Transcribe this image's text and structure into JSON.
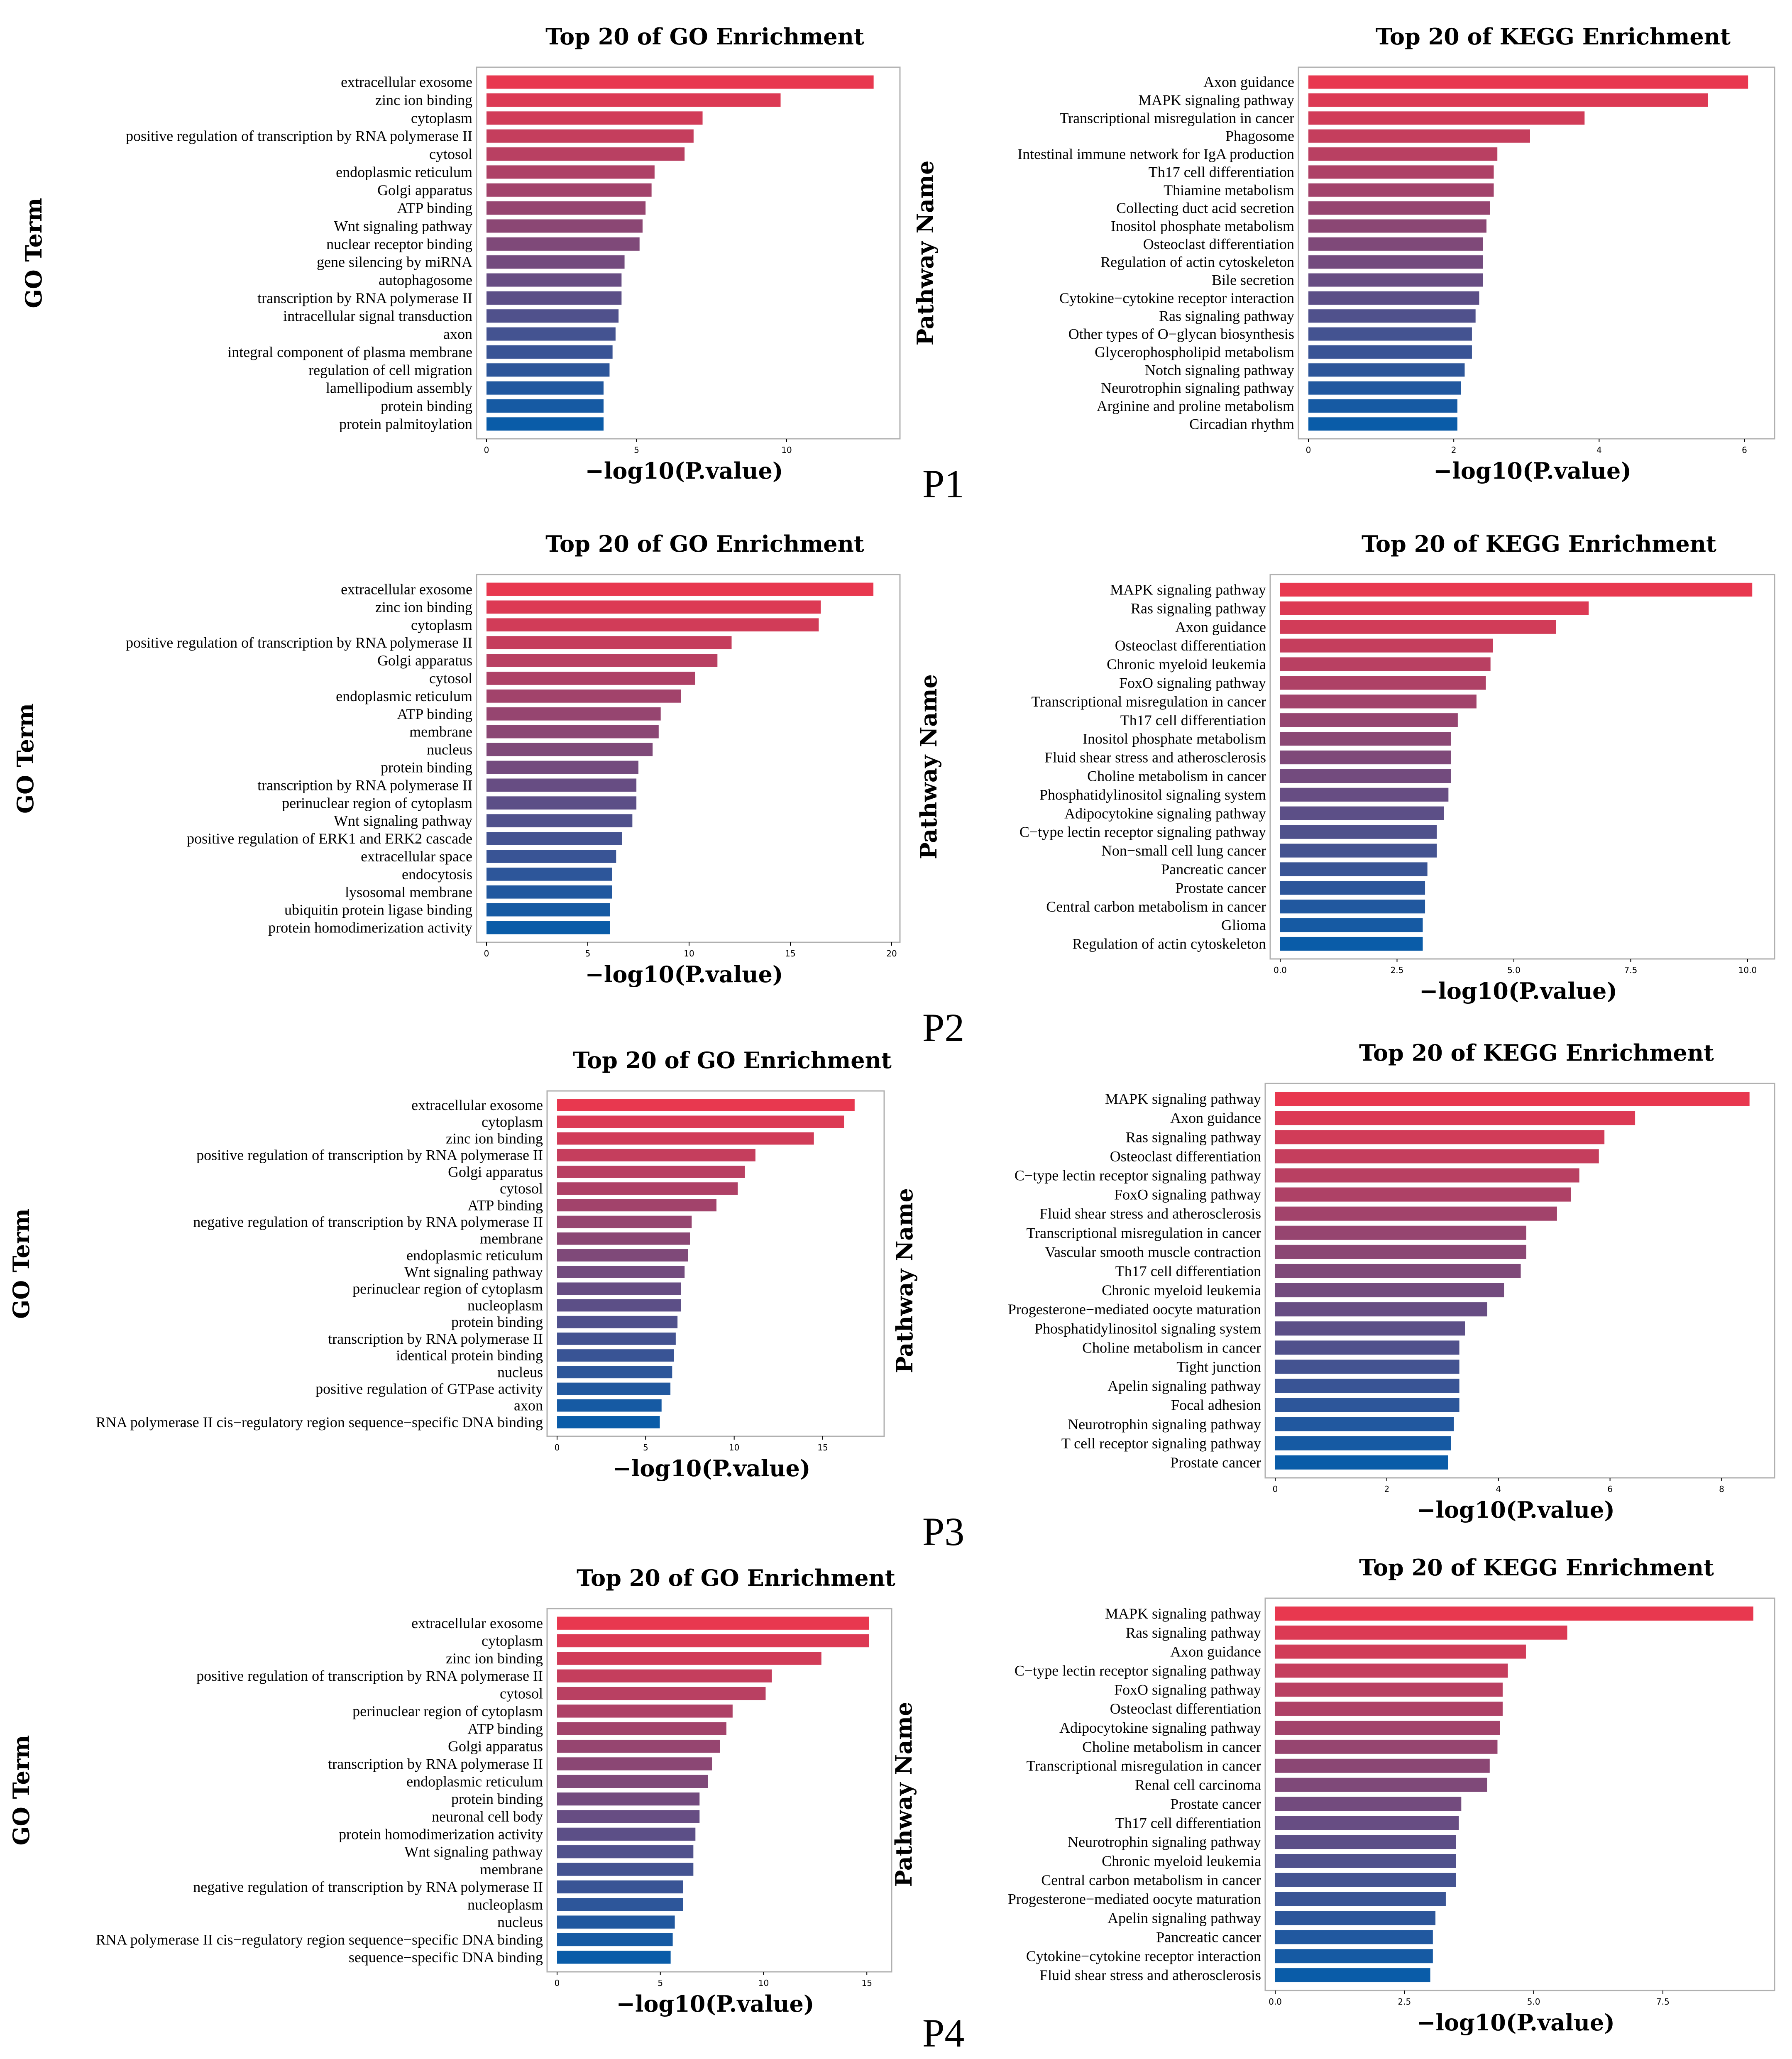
{
  "colors": {
    "top": "#e8384f",
    "bottom": "#0a5ca8"
  },
  "panel_labels": [
    "P1",
    "P2",
    "P3",
    "P4"
  ],
  "chart_data": [
    {
      "type": "bar",
      "orientation": "horizontal",
      "title": "Top 20 of GO Enrichment",
      "xlabel": "−log10(P.value)",
      "ylabel": "GO Term",
      "xlim": [
        0,
        13.5
      ],
      "xticks": [
        0,
        5,
        10
      ],
      "xtick_labels": [
        "0",
        "5",
        "10"
      ],
      "categories": [
        "extracellular exosome",
        "zinc ion binding",
        "cytoplasm",
        "positive regulation of transcription by RNA polymerase II",
        "cytosol",
        "endoplasmic reticulum",
        "Golgi apparatus",
        "ATP binding",
        "Wnt signaling pathway",
        "nuclear receptor binding",
        "gene silencing by miRNA",
        "autophagosome",
        "transcription by RNA polymerase II",
        "intracellular signal transduction",
        "axon",
        "integral component of plasma membrane",
        "regulation of cell migration",
        "lamellipodium assembly",
        "protein binding",
        "protein palmitoylation"
      ],
      "values": [
        12.9,
        9.8,
        7.2,
        6.9,
        6.6,
        5.6,
        5.5,
        5.3,
        5.2,
        5.1,
        4.6,
        4.5,
        4.5,
        4.4,
        4.3,
        4.2,
        4.1,
        3.9,
        3.9,
        3.9
      ]
    },
    {
      "type": "bar",
      "orientation": "horizontal",
      "title": "Top 20 of KEGG Enrichment",
      "xlabel": "−log10(P.value)",
      "ylabel": "Pathway Name",
      "xlim": [
        0,
        6.3
      ],
      "xticks": [
        0,
        2,
        4,
        6
      ],
      "xtick_labels": [
        "0",
        "2",
        "4",
        "6"
      ],
      "categories": [
        "Axon guidance",
        "MAPK signaling pathway",
        "Transcriptional misregulation in cancer",
        "Phagosome",
        "Intestinal immune network for IgA production",
        "Th17 cell differentiation",
        "Thiamine metabolism",
        "Collecting duct acid secretion",
        "Inositol phosphate metabolism",
        "Osteoclast differentiation",
        "Regulation of actin cytoskeleton",
        "Bile secretion",
        "Cytokine−cytokine receptor interaction",
        "Ras signaling pathway",
        "Other types of O−glycan biosynthesis",
        "Glycerophospholipid metabolism",
        "Notch signaling pathway",
        "Neurotrophin signaling pathway",
        "Arginine and proline metabolism",
        "Circadian rhythm"
      ],
      "values": [
        6.05,
        5.5,
        3.8,
        3.05,
        2.6,
        2.55,
        2.55,
        2.5,
        2.45,
        2.4,
        2.4,
        2.4,
        2.35,
        2.3,
        2.25,
        2.25,
        2.15,
        2.1,
        2.05,
        2.05
      ]
    },
    {
      "type": "bar",
      "orientation": "horizontal",
      "title": "Top 20 of GO Enrichment",
      "xlabel": "−log10(P.value)",
      "ylabel": "GO Term",
      "xlim": [
        0,
        20
      ],
      "xticks": [
        0,
        5,
        10,
        15,
        20
      ],
      "xtick_labels": [
        "0",
        "5",
        "10",
        "15",
        "20"
      ],
      "categories": [
        "extracellular exosome",
        "zinc ion binding",
        "cytoplasm",
        "positive regulation of transcription by RNA polymerase II",
        "Golgi apparatus",
        "cytosol",
        "endoplasmic reticulum",
        "ATP binding",
        "membrane",
        "nucleus",
        "protein binding",
        "transcription by RNA polymerase II",
        "perinuclear region of cytoplasm",
        "Wnt signaling pathway",
        "positive regulation of ERK1 and ERK2 cascade",
        "extracellular space",
        "endocytosis",
        "lysosomal membrane",
        "ubiquitin protein ligase binding",
        "protein homodimerization activity"
      ],
      "values": [
        19.1,
        16.5,
        16.4,
        12.1,
        11.4,
        10.3,
        9.6,
        8.6,
        8.5,
        8.2,
        7.5,
        7.4,
        7.4,
        7.2,
        6.7,
        6.4,
        6.2,
        6.2,
        6.1,
        6.1
      ]
    },
    {
      "type": "bar",
      "orientation": "horizontal",
      "title": "Top 20 of KEGG Enrichment",
      "xlabel": "−log10(P.value)",
      "ylabel": "Pathway Name",
      "xlim": [
        0,
        10.4
      ],
      "xticks": [
        0,
        2.5,
        5,
        7.5,
        10
      ],
      "xtick_labels": [
        "0.0",
        "2.5",
        "5.0",
        "7.5",
        "10.0"
      ],
      "categories": [
        "MAPK signaling pathway",
        "Ras signaling pathway",
        "Axon guidance",
        "Osteoclast differentiation",
        "Chronic myeloid leukemia",
        "FoxO signaling pathway",
        "Transcriptional misregulation in cancer",
        "Th17 cell differentiation",
        "Inositol phosphate metabolism",
        "Fluid shear stress and atherosclerosis",
        "Choline metabolism in cancer",
        "Phosphatidylinositol signaling system",
        "Adipocytokine signaling pathway",
        "C−type lectin receptor signaling pathway",
        "Non−small cell lung cancer",
        "Pancreatic cancer",
        "Prostate cancer",
        "Central carbon metabolism in cancer",
        "Glioma",
        "Regulation of actin cytoskeleton"
      ],
      "values": [
        10.1,
        6.6,
        5.9,
        4.55,
        4.5,
        4.4,
        4.2,
        3.8,
        3.65,
        3.65,
        3.65,
        3.6,
        3.5,
        3.35,
        3.35,
        3.15,
        3.1,
        3.1,
        3.05,
        3.05
      ]
    },
    {
      "type": "bar",
      "orientation": "horizontal",
      "title": "Top 20 of GO Enrichment",
      "xlabel": "−log10(P.value)",
      "ylabel": "GO Term",
      "xlim": [
        0,
        18
      ],
      "xticks": [
        0,
        5,
        10,
        15
      ],
      "xtick_labels": [
        "0",
        "5",
        "10",
        "15"
      ],
      "categories": [
        "extracellular exosome",
        "cytoplasm",
        "zinc ion binding",
        "positive regulation of transcription by RNA polymerase II",
        "Golgi apparatus",
        "cytosol",
        "ATP binding",
        "negative regulation of transcription by RNA polymerase II",
        "membrane",
        "endoplasmic reticulum",
        "Wnt signaling pathway",
        "perinuclear region of cytoplasm",
        "nucleoplasm",
        "protein binding",
        "transcription by RNA polymerase II",
        "identical protein binding",
        "nucleus",
        "positive regulation of GTPase activity",
        "axon",
        "RNA polymerase II cis−regulatory region sequence−specific DNA binding"
      ],
      "values": [
        16.8,
        16.2,
        14.5,
        11.2,
        10.6,
        10.2,
        9.0,
        7.6,
        7.5,
        7.4,
        7.2,
        7.0,
        7.0,
        6.8,
        6.7,
        6.6,
        6.5,
        6.4,
        5.9,
        5.8
      ]
    },
    {
      "type": "bar",
      "orientation": "horizontal",
      "title": "Top 20 of KEGG Enrichment",
      "xlabel": "−log10(P.value)",
      "ylabel": "Pathway Name",
      "xlim": [
        0,
        8.8
      ],
      "xticks": [
        0,
        2,
        4,
        6,
        8
      ],
      "xtick_labels": [
        "0",
        "2",
        "4",
        "6",
        "8"
      ],
      "categories": [
        "MAPK signaling pathway",
        "Axon guidance",
        "Ras signaling pathway",
        "Osteoclast differentiation",
        "C−type lectin receptor signaling pathway",
        "FoxO signaling pathway",
        "Fluid shear stress and atherosclerosis",
        "Transcriptional misregulation in cancer",
        "Vascular smooth muscle contraction",
        "Th17 cell differentiation",
        "Chronic myeloid leukemia",
        "Progesterone−mediated oocyte maturation",
        "Phosphatidylinositol signaling system",
        "Choline metabolism in cancer",
        "Tight junction",
        "Apelin signaling pathway",
        "Focal adhesion",
        "Neurotrophin signaling pathway",
        "T cell receptor signaling pathway",
        "Prostate cancer"
      ],
      "values": [
        8.5,
        6.45,
        5.9,
        5.8,
        5.45,
        5.3,
        5.05,
        4.5,
        4.5,
        4.4,
        4.1,
        3.8,
        3.4,
        3.3,
        3.3,
        3.3,
        3.3,
        3.2,
        3.15,
        3.1
      ]
    },
    {
      "type": "bar",
      "orientation": "horizontal",
      "title": "Top 20 of GO Enrichment",
      "xlabel": "−log10(P.value)",
      "ylabel": "GO Term",
      "xlim": [
        0,
        15.8
      ],
      "xticks": [
        0,
        5,
        10,
        15
      ],
      "xtick_labels": [
        "0",
        "5",
        "10",
        "15"
      ],
      "categories": [
        "extracellular exosome",
        "cytoplasm",
        "zinc ion binding",
        "positive regulation of transcription by RNA polymerase II",
        "cytosol",
        "perinuclear region of cytoplasm",
        "ATP binding",
        "Golgi apparatus",
        "transcription by RNA polymerase II",
        "endoplasmic reticulum",
        "protein binding",
        "neuronal cell body",
        "protein homodimerization activity",
        "Wnt signaling pathway",
        "membrane",
        "negative regulation of transcription by RNA polymerase II",
        "nucleoplasm",
        "nucleus",
        "RNA polymerase II cis−regulatory region sequence−specific DNA binding",
        "sequence−specific DNA binding"
      ],
      "values": [
        15.1,
        15.1,
        12.8,
        10.4,
        10.1,
        8.5,
        8.2,
        7.9,
        7.5,
        7.3,
        6.9,
        6.9,
        6.7,
        6.6,
        6.6,
        6.1,
        6.1,
        5.7,
        5.6,
        5.5
      ]
    },
    {
      "type": "bar",
      "orientation": "horizontal",
      "title": "Top 20 of KEGG Enrichment",
      "xlabel": "−log10(P.value)",
      "ylabel": "Pathway Name",
      "xlim": [
        0,
        9.5
      ],
      "xticks": [
        0,
        2.5,
        5,
        7.5
      ],
      "xtick_labels": [
        "0.0",
        "2.5",
        "5.0",
        "7.5"
      ],
      "categories": [
        "MAPK signaling pathway",
        "Ras signaling pathway",
        "Axon guidance",
        "C−type lectin receptor signaling pathway",
        "FoxO signaling pathway",
        "Osteoclast differentiation",
        "Adipocytokine signaling pathway",
        "Choline metabolism in cancer",
        "Transcriptional misregulation in cancer",
        "Renal cell carcinoma",
        "Prostate cancer",
        "Th17 cell differentiation",
        "Neurotrophin signaling pathway",
        "Chronic myeloid leukemia",
        "Central carbon metabolism in cancer",
        "Progesterone−mediated oocyte maturation",
        "Apelin signaling pathway",
        "Pancreatic cancer",
        "Cytokine−cytokine receptor interaction",
        "Fluid shear stress and atherosclerosis"
      ],
      "values": [
        9.25,
        5.65,
        4.85,
        4.5,
        4.4,
        4.4,
        4.35,
        4.3,
        4.15,
        4.1,
        3.6,
        3.55,
        3.5,
        3.5,
        3.5,
        3.3,
        3.1,
        3.05,
        3.05,
        3.0
      ]
    }
  ]
}
